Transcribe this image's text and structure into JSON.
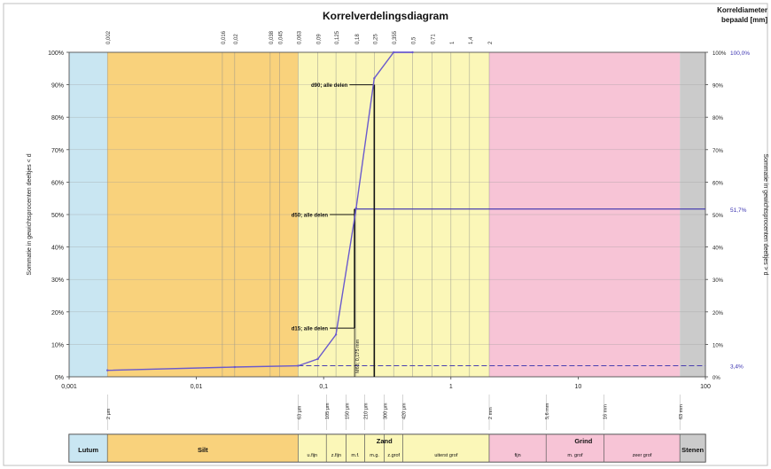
{
  "title": "Korrelverdelingsdiagram",
  "right_header": [
    "Korreldiameter",
    "bepaald [mm]"
  ],
  "ylabel_left": "Sommatie in gewichtsprocenten deeltjes < d",
  "ylabel_right": "Sommatie in gewichtsprocenten deeltjes > d",
  "chart_data": {
    "type": "line",
    "x_scale": "log",
    "xlim": [
      0.001,
      100
    ],
    "ylim": [
      0,
      100
    ],
    "x_ticks": [
      "0,001",
      "0,01",
      "0,1",
      "1",
      "10",
      "100"
    ],
    "y_ticks_left": [
      "0%",
      "10%",
      "20%",
      "30%",
      "40%",
      "50%",
      "60%",
      "70%",
      "80%",
      "90%",
      "100%"
    ],
    "y_ticks_right": [
      "100%",
      "90%",
      "80%",
      "70%",
      "60%",
      "50%",
      "40%",
      "30%",
      "20%",
      "10%",
      "0%"
    ],
    "top_sieve_labels": [
      {
        "x": 0.002,
        "label": "0,002"
      },
      {
        "x": 0.016,
        "label": "0,016"
      },
      {
        "x": 0.02,
        "label": "0,02"
      },
      {
        "x": 0.038,
        "label": "0,038"
      },
      {
        "x": 0.045,
        "label": "0,045"
      },
      {
        "x": 0.063,
        "label": "0,063"
      },
      {
        "x": 0.09,
        "label": "0,09"
      },
      {
        "x": 0.125,
        "label": "0,125"
      },
      {
        "x": 0.18,
        "label": "0,18"
      },
      {
        "x": 0.25,
        "label": "0,25"
      },
      {
        "x": 0.355,
        "label": "0,355"
      },
      {
        "x": 0.5,
        "label": "0,5"
      },
      {
        "x": 0.71,
        "label": "0,71"
      },
      {
        "x": 1,
        "label": "1"
      },
      {
        "x": 1.4,
        "label": "1,4"
      },
      {
        "x": 2,
        "label": "2"
      }
    ],
    "bands": [
      {
        "from": 0.001,
        "to": 0.002,
        "color": "#c9e6f2"
      },
      {
        "from": 0.002,
        "to": 0.063,
        "color": "#f9d27c"
      },
      {
        "from": 0.063,
        "to": 2,
        "color": "#fbf7b8"
      },
      {
        "from": 2,
        "to": 63,
        "color": "#f7c4d6"
      },
      {
        "from": 63,
        "to": 100,
        "color": "#cbcbcb"
      }
    ],
    "series": [
      {
        "color": "#6a5acd",
        "x": [
          0.002,
          0.02,
          0.063,
          0.09,
          0.125,
          0.18,
          0.25,
          0.355,
          0.5
        ],
        "y": [
          2,
          3,
          3.4,
          5.5,
          13,
          52,
          92,
          100,
          100
        ]
      }
    ],
    "annotations": [
      {
        "label": "d90; alle delen",
        "x": 0.25,
        "y": 90
      },
      {
        "label": "d50; alle delen",
        "x": 0.175,
        "y": 50
      },
      {
        "label": "d15; alle delen",
        "x": 0.175,
        "y": 15
      },
      {
        "label": "M63; 0,175 mm",
        "x": 0.175,
        "y": 10
      }
    ],
    "right_values": [
      {
        "label": "100,0%",
        "y": 100
      },
      {
        "label": "51,7%",
        "y": 51.7
      },
      {
        "label": "3,4%",
        "y": 3.4
      }
    ]
  },
  "bottom_ticks": [
    {
      "x": 0.002,
      "label": "2 μm"
    },
    {
      "x": 0.063,
      "label": "63 μm"
    },
    {
      "x": 0.105,
      "label": "105 μm"
    },
    {
      "x": 0.15,
      "label": "150 μm"
    },
    {
      "x": 0.21,
      "label": "210 μm"
    },
    {
      "x": 0.3,
      "label": "300 μm"
    },
    {
      "x": 0.42,
      "label": "420 μm"
    },
    {
      "x": 2,
      "label": "2 mm"
    },
    {
      "x": 5.6,
      "label": "5,6 mm"
    },
    {
      "x": 16,
      "label": "16 mm"
    },
    {
      "x": 63,
      "label": "63 mm"
    }
  ],
  "classification": {
    "group_labels": [
      {
        "label": "Zand",
        "x": 0.3
      },
      {
        "label": "Grind",
        "x": 11
      }
    ],
    "cells": [
      {
        "from": 0.001,
        "to": 0.002,
        "label": "Lutum",
        "color": "#c9e6f2",
        "bold": true
      },
      {
        "from": 0.002,
        "to": 0.063,
        "label": "Silt",
        "color": "#f9d27c",
        "bold": true
      },
      {
        "from": 0.063,
        "to": 0.105,
        "label": "u.fijn",
        "color": "#fbf7b8"
      },
      {
        "from": 0.105,
        "to": 0.15,
        "label": "z.fijn",
        "color": "#fbf7b8"
      },
      {
        "from": 0.15,
        "to": 0.21,
        "label": "m.f.",
        "color": "#fbf7b8"
      },
      {
        "from": 0.21,
        "to": 0.3,
        "label": "m.g.",
        "color": "#fbf7b8"
      },
      {
        "from": 0.3,
        "to": 0.42,
        "label": "z.grof",
        "color": "#fbf7b8"
      },
      {
        "from": 0.42,
        "to": 2,
        "label": "uiterst grof",
        "color": "#fbf7b8"
      },
      {
        "from": 2,
        "to": 5.6,
        "label": "fijn",
        "color": "#f7c4d6"
      },
      {
        "from": 5.6,
        "to": 16,
        "label": "m. grof",
        "color": "#f7c4d6"
      },
      {
        "from": 16,
        "to": 63,
        "label": "zeer grof",
        "color": "#f7c4d6"
      },
      {
        "from": 63,
        "to": 100,
        "label": "Stenen",
        "color": "#cbcbcb",
        "bold": true
      }
    ]
  }
}
